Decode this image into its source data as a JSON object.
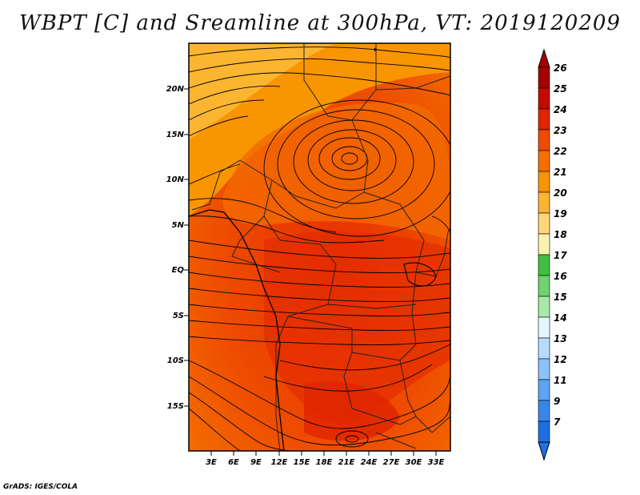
{
  "title": "WBPT [C] and Sreamline at 300hPa, VT: 2019120209",
  "credit": "GrADS: IGES/COLA",
  "map": {
    "y_labels": [
      "20N",
      "15N",
      "10N",
      "5N",
      "EQ",
      "5S",
      "10S",
      "15S"
    ],
    "x_labels": [
      "3E",
      "6E",
      "9E",
      "12E",
      "15E",
      "18E",
      "21E",
      "24E",
      "27E",
      "30E",
      "33E"
    ]
  },
  "colorbar": {
    "labels": [
      "26",
      "25",
      "24",
      "23",
      "22",
      "21",
      "20",
      "19",
      "18",
      "17",
      "16",
      "15",
      "14",
      "13",
      "12",
      "11",
      "9",
      "7"
    ],
    "colors": [
      "#a50000",
      "#c40a00",
      "#de2400",
      "#ee4b00",
      "#f56f00",
      "#f89500",
      "#fbb531",
      "#fcd676",
      "#fcf0b0",
      "#3fbf3f",
      "#6fd36f",
      "#a8e8a8",
      "#e3f7ff",
      "#b8dcff",
      "#8cc1fb",
      "#5ea4f4",
      "#3787ea",
      "#1f6fe0"
    ]
  }
}
